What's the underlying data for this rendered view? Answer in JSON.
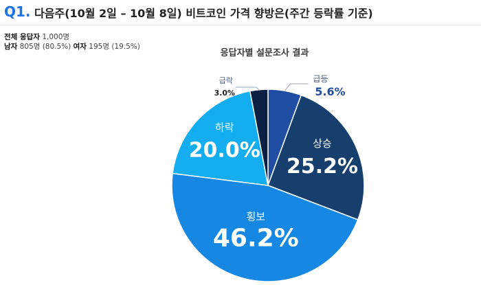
{
  "question": {
    "number": "Q1.",
    "title": "다음주(10월 2일 – 10월 8일)  비트코인 가격 향방은(주간 등락률 기준)"
  },
  "respondents": {
    "total_label": "전체 응답자",
    "total_value": "1,000명",
    "male_label": "남자",
    "male_value": "805명 (80.5%)",
    "female_label": "여자",
    "female_value": "195명 (19.5%)"
  },
  "chart_data": {
    "type": "pie",
    "title": "응답자별 설문조사 결과",
    "slices": [
      {
        "label": "급등",
        "value": 5.6,
        "display": "5.6%",
        "color": "#1f4ea3"
      },
      {
        "label": "상승",
        "value": 25.2,
        "display": "25.2%",
        "color": "#173f6e"
      },
      {
        "label": "횡보",
        "value": 46.2,
        "display": "46.2%",
        "color": "#1787e4"
      },
      {
        "label": "하락",
        "value": 20.0,
        "display": "20.0%",
        "color": "#14aef0"
      },
      {
        "label": "급락",
        "value": 3.0,
        "display": "3.0%",
        "color": "#0c2044"
      }
    ]
  }
}
